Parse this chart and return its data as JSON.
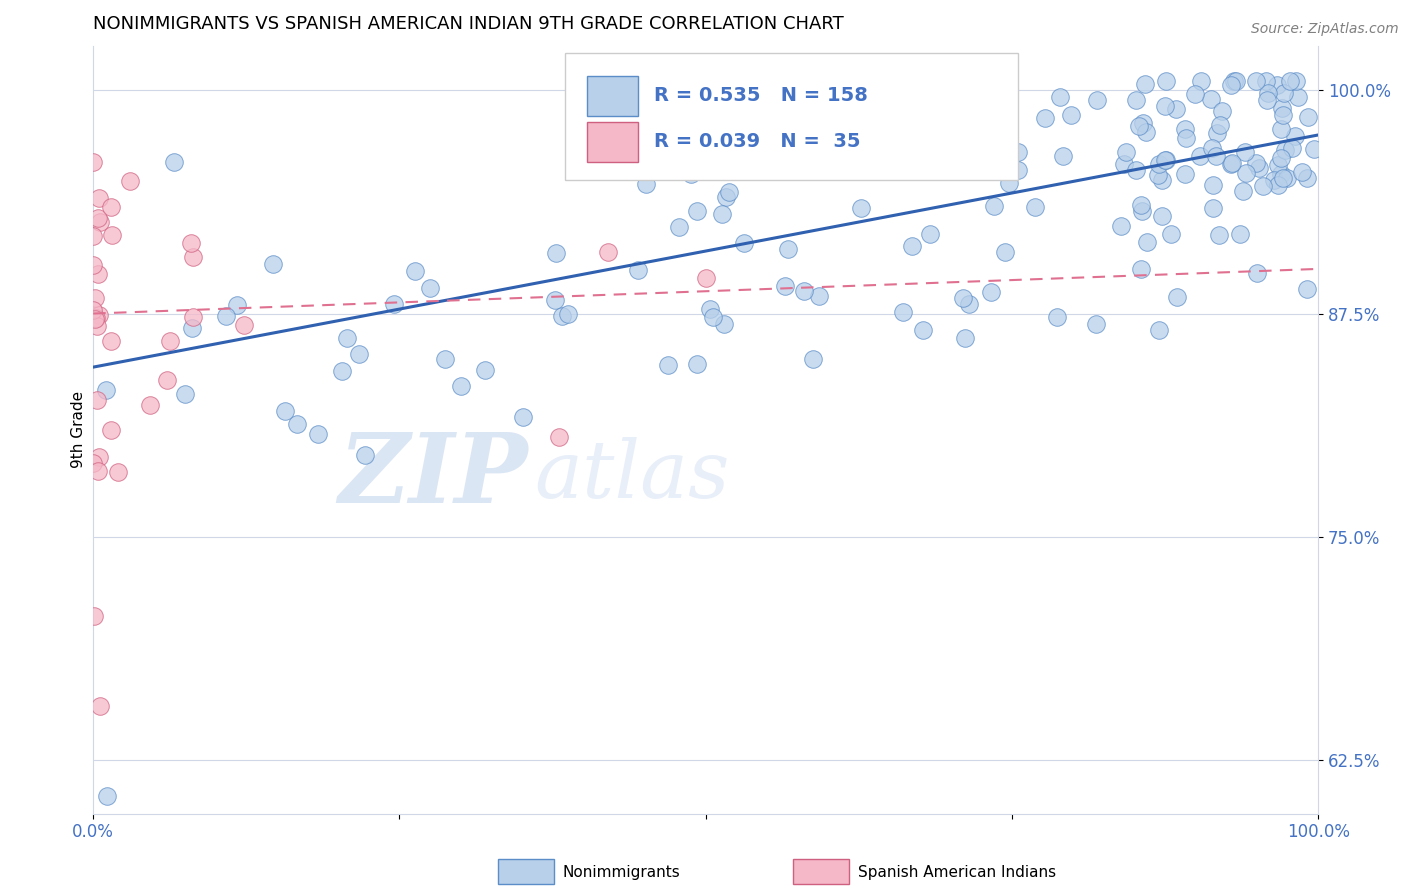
{
  "title": "NONIMMIGRANTS VS SPANISH AMERICAN INDIAN 9TH GRADE CORRELATION CHART",
  "source": "Source: ZipAtlas.com",
  "ylabel": "9th Grade",
  "yticks": [
    0.625,
    0.75,
    0.875,
    1.0
  ],
  "ytick_labels": [
    "62.5%",
    "75.0%",
    "87.5%",
    "100.0%"
  ],
  "xlim": [
    0.0,
    1.0
  ],
  "ylim": [
    0.595,
    1.025
  ],
  "blue_fill": "#b8d0ea",
  "blue_edge": "#5b8dc8",
  "pink_fill": "#f5b8c8",
  "pink_edge": "#d06080",
  "blue_line_color": "#3060b0",
  "pink_line_color": "#e07090",
  "R_blue": 0.535,
  "N_blue": 158,
  "R_pink": 0.039,
  "N_pink": 35,
  "legend_label_blue": "Nonimmigrants",
  "legend_label_pink": "Spanish American Indians",
  "blue_trend_x0": 0.0,
  "blue_trend_y0": 0.845,
  "blue_trend_x1": 1.0,
  "blue_trend_y1": 0.975,
  "pink_trend_x0": 0.0,
  "pink_trend_y0": 0.875,
  "pink_trend_x1": 1.0,
  "pink_trend_y1": 0.9,
  "watermark_zip": "ZIP",
  "watermark_atlas": "atlas",
  "bg_color": "#ffffff",
  "grid_color": "#d0d8e8",
  "title_color": "#000000",
  "tick_label_color": "#4472c4"
}
